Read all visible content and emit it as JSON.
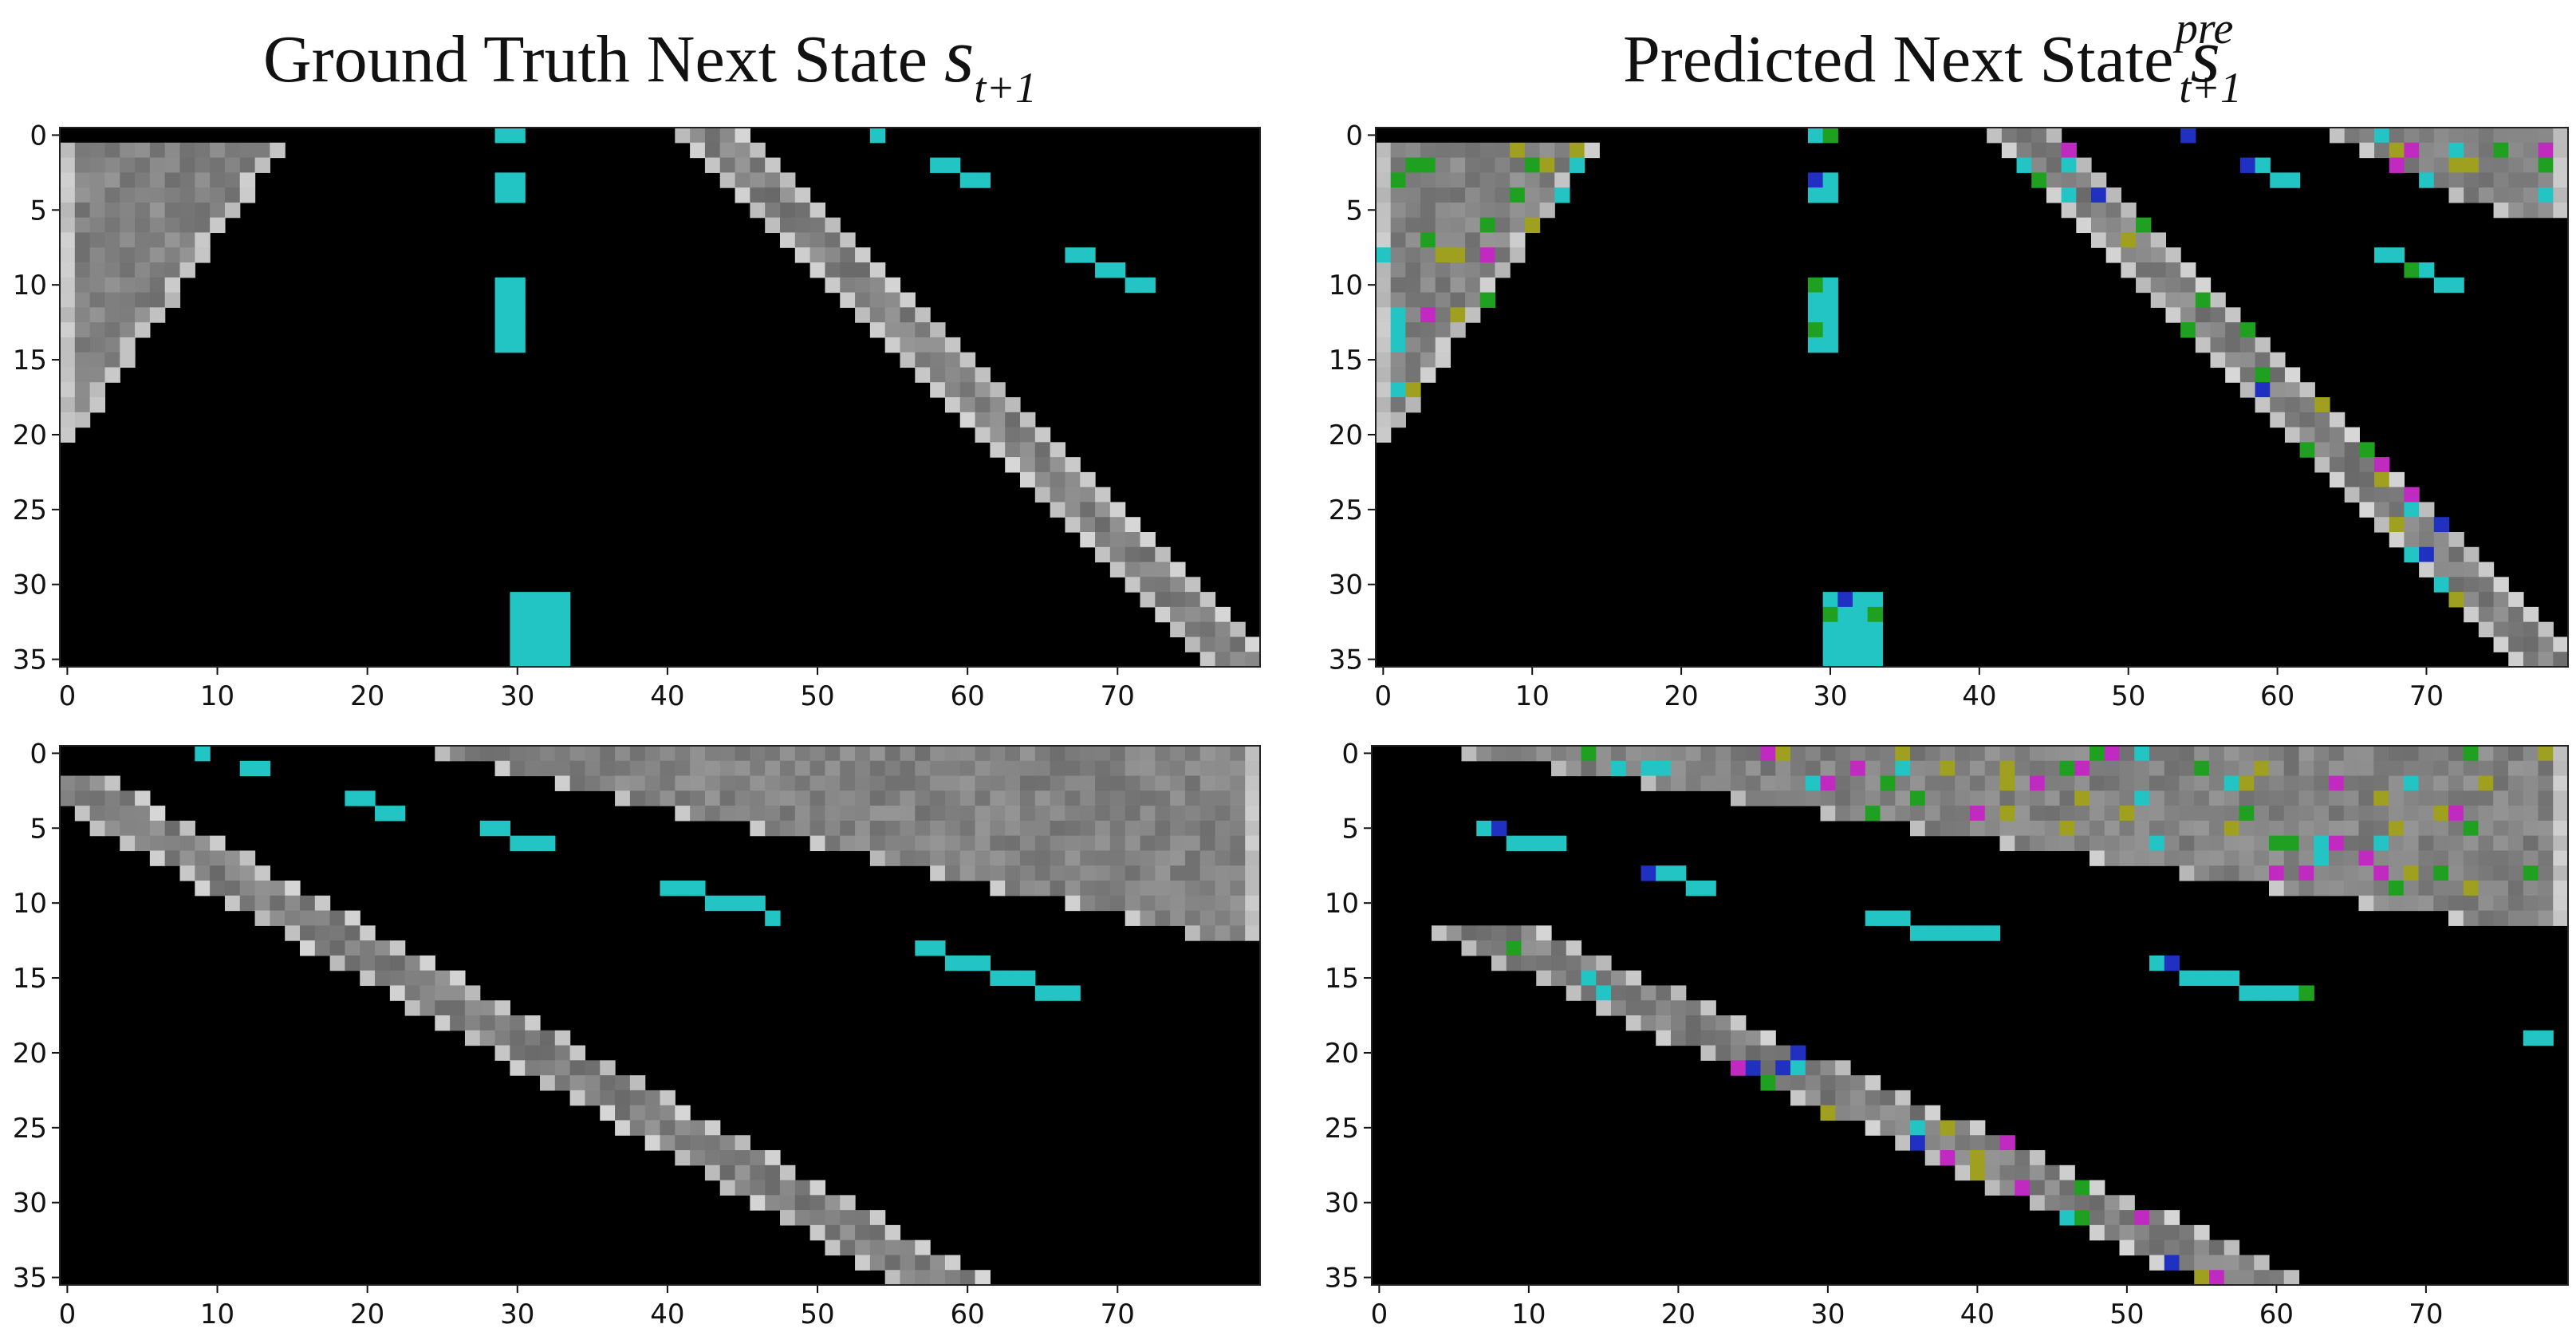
{
  "titles": {
    "left": {
      "text": "Ground Truth Next State",
      "symbol": "s",
      "subscript": "t+1"
    },
    "right": {
      "text": "Predicted Next State",
      "symbol": "s",
      "subscript": "t+1",
      "superscript": "pre"
    }
  },
  "axes": {
    "x_ticks": [
      "0",
      "10",
      "20",
      "30",
      "40",
      "50",
      "60",
      "70"
    ],
    "y_ticks": [
      "0",
      "5",
      "10",
      "15",
      "20",
      "25",
      "30",
      "35"
    ]
  },
  "colors": {
    "background": "#000000",
    "road_stripe": "#8a8a8a",
    "lane_marker": "#22c4c4",
    "artifact_magenta": "#c02ac0",
    "artifact_olive": "#a0a020",
    "artifact_green": "#20a020",
    "artifact_blue": "#2030c0"
  },
  "panels": [
    {
      "id": "top-left",
      "kind": "ground-truth"
    },
    {
      "id": "top-right",
      "kind": "predicted"
    },
    {
      "id": "bottom-left",
      "kind": "ground-truth"
    },
    {
      "id": "bottom-right",
      "kind": "predicted"
    }
  ]
}
